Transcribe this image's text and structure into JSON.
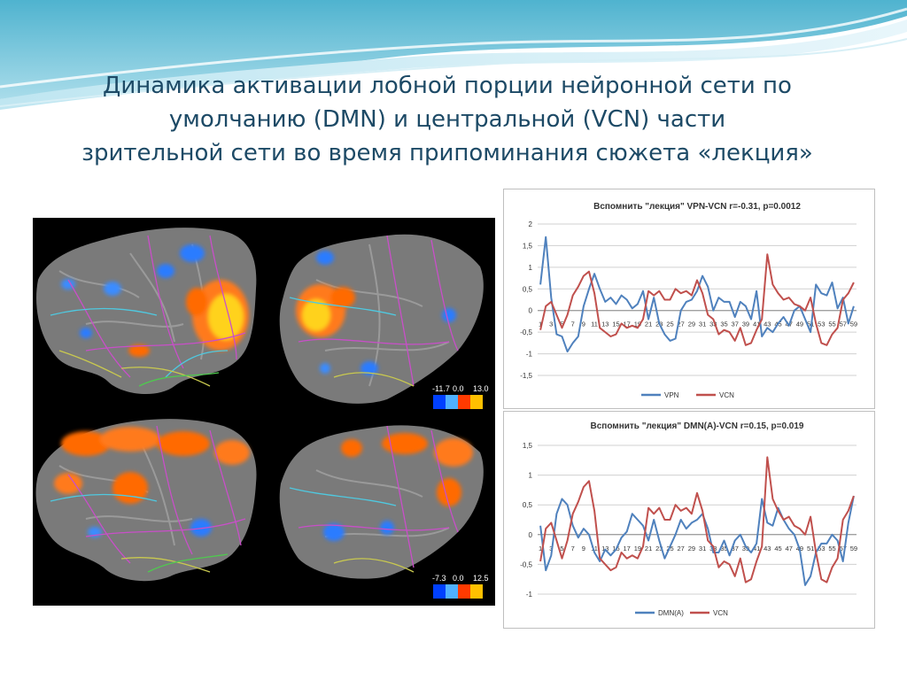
{
  "slide": {
    "title_lines": [
      "Динамика активации лобной порции нейронной сети по",
      "умолчанию (DMN) и центральной (VCN) части",
      "зрительной сети во время припоминания сюжета «лекция»"
    ]
  },
  "brain_maps": {
    "top_scale": {
      "min": "-11.7",
      "mid": "0.0",
      "max": "13.0"
    },
    "bottom_scale": {
      "min": "-7.3",
      "mid": "0.0",
      "max": "12.5"
    }
  },
  "colors": {
    "series_blue": "#4f81bd",
    "series_red": "#c0504d",
    "title_text": "#1d4a66"
  },
  "chart_data": [
    {
      "type": "line",
      "title": "Вспомнить \"лекция\" VPN-VCN r=-0.31, p=0.0012",
      "ylim": [
        -1.5,
        2
      ],
      "yticks": [
        "2",
        "1,5",
        "1",
        "0,5",
        "0",
        "-0,5",
        "-1",
        "-1,5"
      ],
      "xtick_labels": [
        "1",
        "3",
        "5",
        "7",
        "9",
        "11",
        "13",
        "15",
        "17",
        "19",
        "21",
        "23",
        "25",
        "27",
        "29",
        "31",
        "33",
        "35",
        "37",
        "39",
        "41",
        "43",
        "45",
        "47",
        "49",
        "51",
        "53",
        "55",
        "57",
        "59"
      ],
      "grid": true,
      "legend_position": "bottom",
      "series": [
        {
          "name": "VPN",
          "color": "#4f81bd",
          "values": [
            0.6,
            1.7,
            0.3,
            -0.55,
            -0.6,
            -0.95,
            -0.75,
            -0.6,
            0.1,
            0.5,
            0.85,
            0.5,
            0.2,
            0.3,
            0.15,
            0.35,
            0.25,
            0.05,
            0.15,
            0.45,
            -0.2,
            0.3,
            -0.3,
            -0.55,
            -0.7,
            -0.65,
            0.0,
            0.2,
            0.25,
            0.45,
            0.8,
            0.55,
            0.0,
            0.3,
            0.2,
            0.2,
            -0.15,
            0.2,
            0.1,
            -0.2,
            0.45,
            -0.6,
            -0.4,
            -0.5,
            -0.3,
            -0.15,
            -0.35,
            0.0,
            0.1,
            -0.2,
            -0.5,
            0.6,
            0.4,
            0.35,
            0.65,
            0.05,
            0.3,
            -0.3,
            0.1
          ]
        },
        {
          "name": "VCN",
          "color": "#c0504d",
          "values": [
            -0.45,
            0.1,
            0.2,
            -0.1,
            -0.4,
            -0.1,
            0.35,
            0.55,
            0.8,
            0.9,
            0.4,
            -0.4,
            -0.5,
            -0.6,
            -0.55,
            -0.3,
            -0.4,
            -0.35,
            -0.4,
            -0.2,
            0.45,
            0.35,
            0.45,
            0.25,
            0.25,
            0.5,
            0.4,
            0.45,
            0.35,
            0.7,
            0.4,
            -0.1,
            -0.2,
            -0.55,
            -0.45,
            -0.5,
            -0.7,
            -0.4,
            -0.8,
            -0.75,
            -0.45,
            -0.2,
            1.3,
            0.6,
            0.4,
            0.25,
            0.3,
            0.15,
            0.1,
            0.0,
            0.3,
            -0.3,
            -0.75,
            -0.8,
            -0.55,
            -0.4,
            0.25,
            0.4,
            0.65
          ]
        }
      ]
    },
    {
      "type": "line",
      "title": "Вспомнить \"лекция\" DMN(A)-VCN r=0.15, p=0.019",
      "ylim": [
        -1,
        1.5
      ],
      "yticks": [
        "1,5",
        "1",
        "0,5",
        "0",
        "-0,5",
        "-1"
      ],
      "xtick_labels": [
        "1",
        "3",
        "5",
        "7",
        "9",
        "11",
        "13",
        "15",
        "17",
        "19",
        "21",
        "23",
        "25",
        "27",
        "29",
        "31",
        "33",
        "35",
        "37",
        "39",
        "41",
        "43",
        "45",
        "47",
        "49",
        "51",
        "53",
        "55",
        "57",
        "59"
      ],
      "grid": true,
      "legend_position": "bottom",
      "series": [
        {
          "name": "DMN(A)",
          "color": "#4f81bd",
          "values": [
            0.15,
            -0.6,
            -0.35,
            0.35,
            0.6,
            0.5,
            0.15,
            -0.05,
            0.1,
            0.0,
            -0.3,
            -0.45,
            -0.25,
            -0.35,
            -0.25,
            -0.05,
            0.05,
            0.35,
            0.25,
            0.15,
            -0.1,
            0.25,
            -0.1,
            -0.4,
            -0.2,
            0.0,
            0.25,
            0.1,
            0.2,
            0.25,
            0.35,
            0.1,
            -0.3,
            -0.3,
            -0.1,
            -0.35,
            -0.1,
            0.0,
            -0.2,
            -0.3,
            -0.15,
            0.6,
            0.2,
            0.15,
            0.45,
            0.25,
            0.1,
            0.0,
            -0.25,
            -0.85,
            -0.7,
            -0.3,
            -0.15,
            -0.15,
            0.0,
            -0.1,
            -0.45,
            0.2,
            0.65
          ]
        },
        {
          "name": "VCN",
          "color": "#c0504d",
          "values": [
            -0.45,
            0.1,
            0.2,
            -0.1,
            -0.4,
            -0.1,
            0.35,
            0.55,
            0.8,
            0.9,
            0.4,
            -0.4,
            -0.5,
            -0.6,
            -0.55,
            -0.3,
            -0.4,
            -0.35,
            -0.4,
            -0.2,
            0.45,
            0.35,
            0.45,
            0.25,
            0.25,
            0.5,
            0.4,
            0.45,
            0.35,
            0.7,
            0.4,
            -0.1,
            -0.2,
            -0.55,
            -0.45,
            -0.5,
            -0.7,
            -0.4,
            -0.8,
            -0.75,
            -0.45,
            -0.2,
            1.3,
            0.6,
            0.4,
            0.25,
            0.3,
            0.15,
            0.1,
            0.0,
            0.3,
            -0.3,
            -0.75,
            -0.8,
            -0.55,
            -0.4,
            0.25,
            0.4,
            0.65
          ]
        }
      ]
    }
  ]
}
